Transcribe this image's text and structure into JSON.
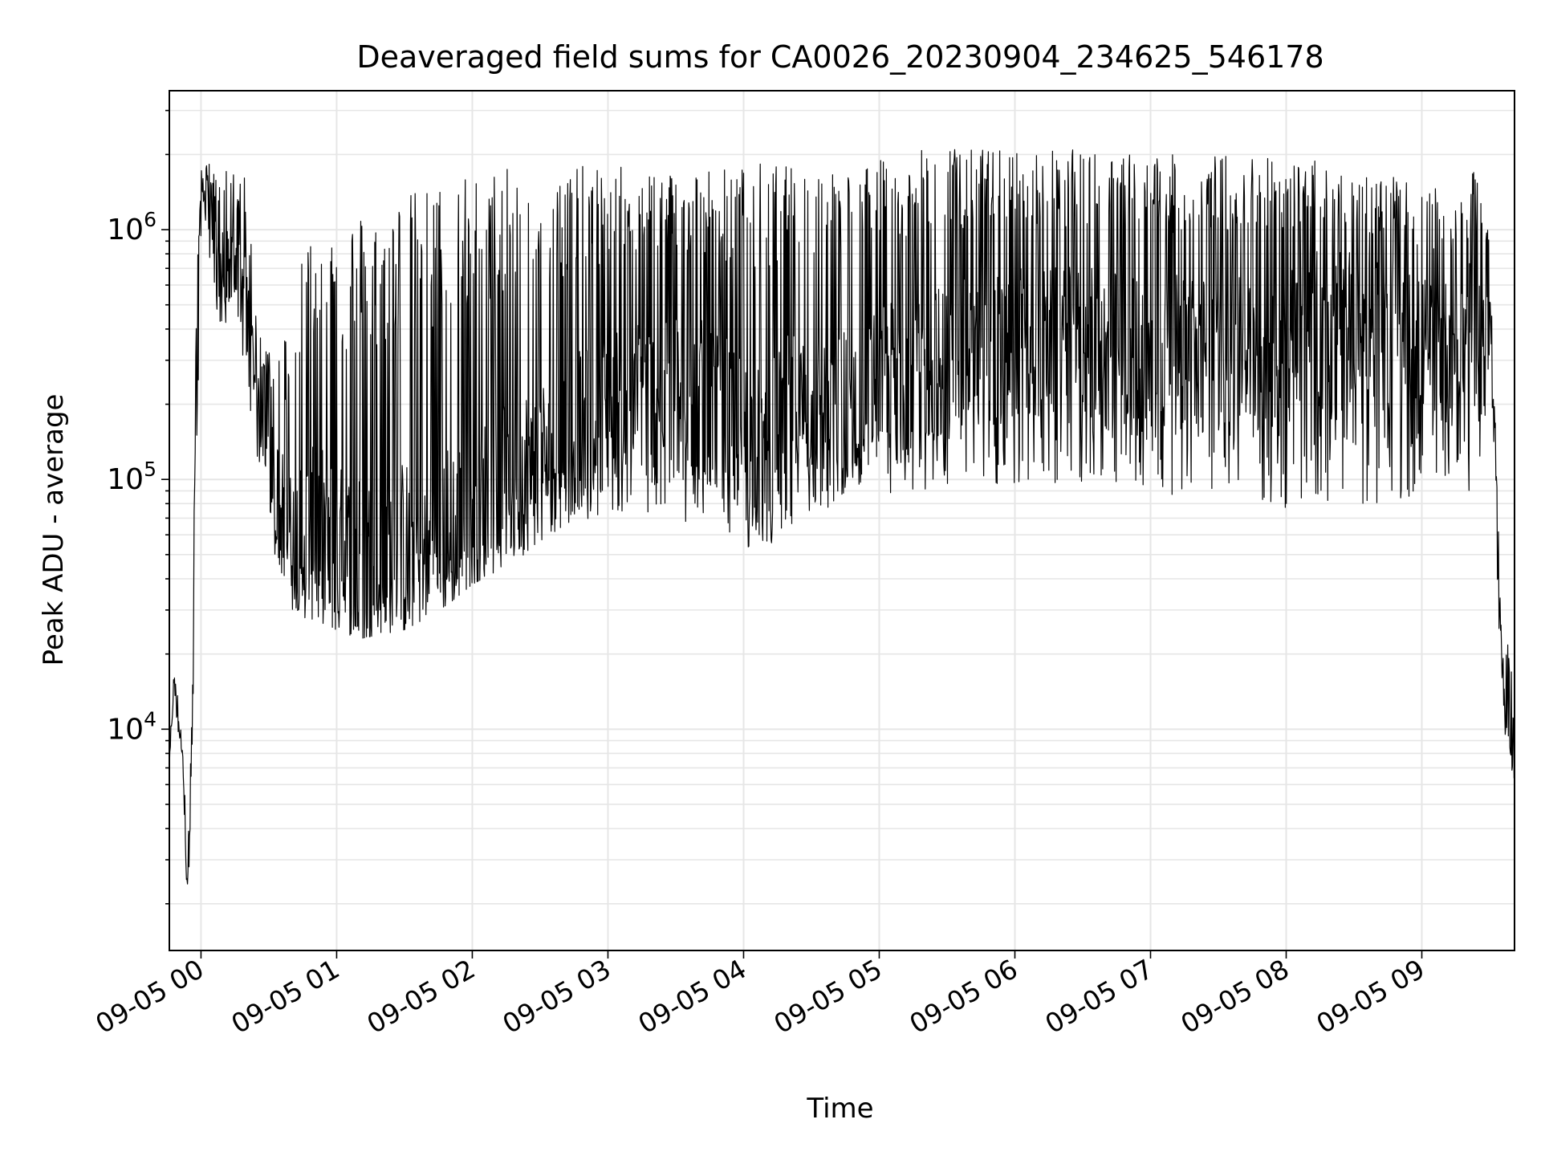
{
  "chart_data": {
    "type": "line",
    "title": "Deaveraged field sums for CA0026_20230904_234625_546178",
    "xlabel": "Time",
    "ylabel": "Peak ADU - average",
    "y_scale": "log",
    "ylim": [
      1300,
      3600000
    ],
    "xlim": [
      "09-04 23:46",
      "09-05 09:41"
    ],
    "grid": true,
    "legend": "none",
    "line_color": "#000000",
    "x_tick_labels": [
      "09-05 00",
      "09-05 01",
      "09-05 02",
      "09-05 03",
      "09-05 04",
      "09-05 05",
      "09-05 06",
      "09-05 07",
      "09-05 08",
      "09-05 09"
    ],
    "y_tick_labels": [
      {
        "value": 10000,
        "label": "10",
        "exp": "4"
      },
      {
        "value": 100000,
        "label": "10",
        "exp": "5"
      },
      {
        "value": 1000000,
        "label": "10",
        "exp": "6"
      }
    ],
    "series": [
      {
        "x": [
          "09-04 23:46",
          "09-04 23:48",
          "09-04 23:50",
          "09-04 23:52",
          "09-04 23:54",
          "09-04 23:56",
          "09-04 23:58",
          "09-05 00:00",
          "09-05 00:03",
          "09-05 00:06",
          "09-05 00:10",
          "09-05 00:15",
          "09-05 00:20",
          "09-05 00:25",
          "09-05 00:30",
          "09-05 00:35",
          "09-05 00:40",
          "09-05 00:45",
          "09-05 00:50",
          "09-05 00:55",
          "09-05 01:00",
          "09-05 01:10",
          "09-05 01:20",
          "09-05 01:30",
          "09-05 01:40",
          "09-05 01:50",
          "09-05 02:00",
          "09-05 02:15",
          "09-05 02:30",
          "09-05 02:45",
          "09-05 03:00",
          "09-05 03:15",
          "09-05 03:30",
          "09-05 03:45",
          "09-05 04:00",
          "09-05 04:10",
          "09-05 04:20",
          "09-05 04:30",
          "09-05 04:45",
          "09-05 05:00",
          "09-05 05:30",
          "09-05 06:00",
          "09-05 06:30",
          "09-05 07:00",
          "09-05 07:30",
          "09-05 07:50",
          "09-05 08:00",
          "09-05 08:20",
          "09-05 08:40",
          "09-05 09:00",
          "09-05 09:15",
          "09-05 09:25",
          "09-05 09:30",
          "09-05 09:35",
          "09-05 09:40"
        ],
        "low": [
          6000,
          14000,
          9000,
          7000,
          1800,
          5000,
          60000,
          1000000,
          1000000,
          400000,
          350000,
          450000,
          250000,
          120000,
          70000,
          35000,
          30000,
          28000,
          27000,
          26000,
          25000,
          23000,
          24000,
          25000,
          28000,
          32000,
          38000,
          45000,
          55000,
          65000,
          75000,
          70000,
          65000,
          60000,
          55000,
          45000,
          60000,
          70000,
          75000,
          80000,
          90000,
          95000,
          90000,
          85000,
          90000,
          80000,
          75000,
          80000,
          75000,
          90000,
          100000,
          80000,
          300000,
          12000,
          6000
        ],
        "high": [
          8000,
          17000,
          14000,
          10000,
          3000,
          12000,
          600000,
          1800000,
          1900000,
          1700000,
          1800000,
          1700000,
          1600000,
          400000,
          350000,
          400000,
          400000,
          1000000,
          1000000,
          1100000,
          1100000,
          1200000,
          1300000,
          1400000,
          1500000,
          1600000,
          1700000,
          1750000,
          1800000,
          1800000,
          1800000,
          1800000,
          1800000,
          1800000,
          1800000,
          1900000,
          1800000,
          1800000,
          1800000,
          1900000,
          2200000,
          2100000,
          2100000,
          2000000,
          2000000,
          2100000,
          1900000,
          1900000,
          1700000,
          1500000,
          1400000,
          1800000,
          1000000,
          30000,
          18000
        ],
        "mid": [
          7000,
          15000,
          11000,
          8000,
          2200,
          8000,
          300000,
          1400000,
          1500000,
          800000,
          700000,
          700000,
          600000,
          200000,
          130000,
          80000,
          60000,
          60000,
          60000,
          60000,
          50000,
          45000,
          45000,
          50000,
          55000,
          60000,
          70000,
          100000,
          120000,
          150000,
          200000,
          220000,
          220000,
          200000,
          150000,
          120000,
          180000,
          200000,
          200000,
          250000,
          300000,
          350000,
          350000,
          330000,
          330000,
          300000,
          400000,
          450000,
          400000,
          350000,
          350000,
          400000,
          500000,
          18000,
          9000
        ]
      }
    ]
  }
}
